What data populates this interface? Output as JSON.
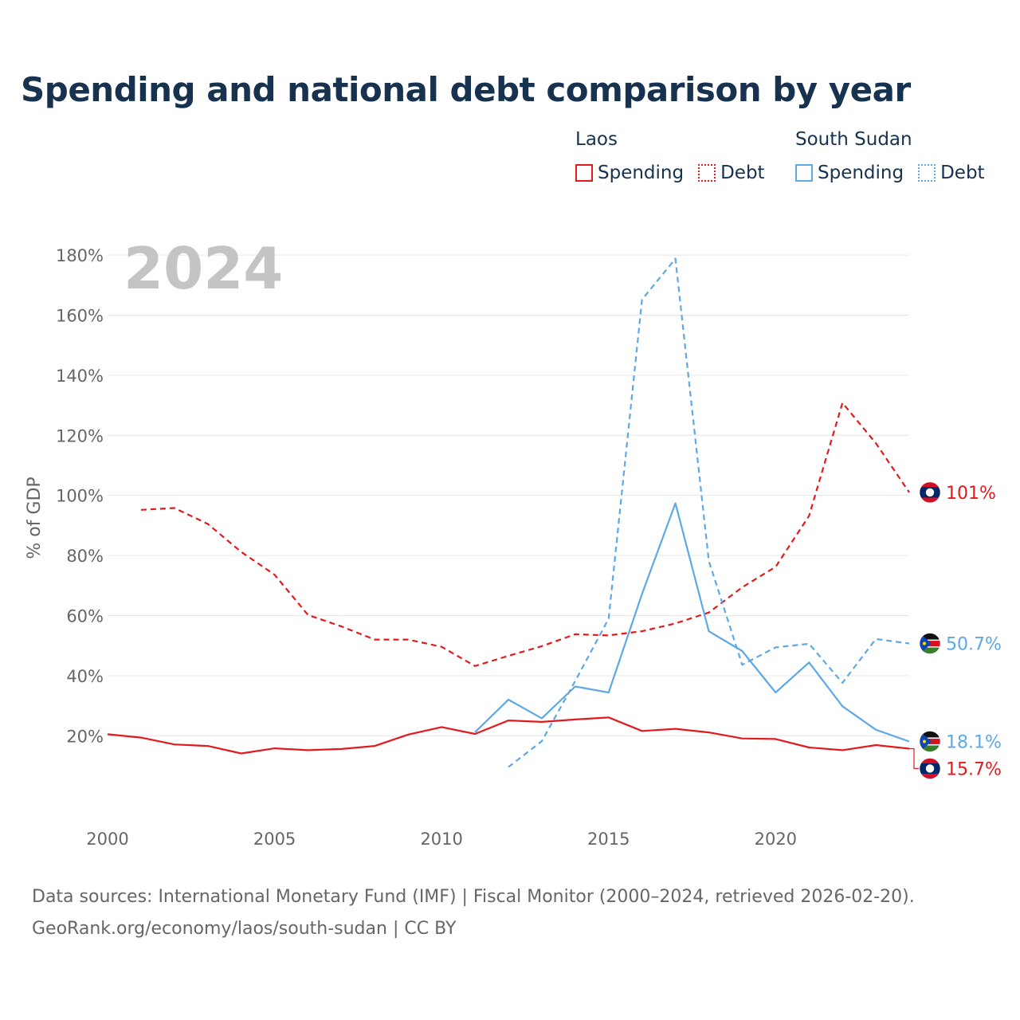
{
  "title": "Spending and national debt comparison by year",
  "legend": {
    "laos": {
      "country": "Laos",
      "spending": "Spending",
      "debt": "Debt"
    },
    "south_sudan": {
      "country": "South Sudan",
      "spending": "Spending",
      "debt": "Debt"
    }
  },
  "year_watermark": "2024",
  "footer": {
    "sources": "Data sources: International Monetary Fund (IMF) | Fiscal Monitor (2000–2024, retrieved 2026-02-20).",
    "credit": "GeoRank.org/economy/laos/south-sudan | CC BY"
  },
  "colors": {
    "laos": "#e31a1c",
    "south_sudan": "#5fa8e6",
    "title": "#17324f",
    "grid": "#e6e6e6"
  },
  "flags": {
    "laos": "laos-flag-icon",
    "south_sudan": "south-sudan-flag-icon"
  },
  "chart_data": {
    "type": "line",
    "title": "Spending and national debt comparison by year",
    "ylabel": "% of GDP",
    "xlabel": "",
    "xlim": [
      2000,
      2024
    ],
    "ylim": [
      -3,
      184
    ],
    "x_ticks": [
      "2000",
      "2005",
      "2010",
      "2015",
      "2020"
    ],
    "x_tick_values": [
      2000,
      2005,
      2010,
      2015,
      2020
    ],
    "y_ticks": [
      "20%",
      "40%",
      "60%",
      "80%",
      "100%",
      "120%",
      "140%",
      "160%",
      "180%"
    ],
    "y_tick_values": [
      20,
      40,
      60,
      80,
      100,
      120,
      140,
      160,
      180
    ],
    "series": [
      {
        "name": "Laos Spending",
        "country": "laos",
        "style": "solid",
        "points": [
          [
            2000,
            20.5
          ],
          [
            2001,
            19.4
          ],
          [
            2002,
            17.1
          ],
          [
            2003,
            16.6
          ],
          [
            2004,
            14.1
          ],
          [
            2005,
            15.8
          ],
          [
            2006,
            15.2
          ],
          [
            2007,
            15.6
          ],
          [
            2008,
            16.6
          ],
          [
            2009,
            20.4
          ],
          [
            2010,
            22.9
          ],
          [
            2011,
            20.6
          ],
          [
            2012,
            25.1
          ],
          [
            2013,
            24.6
          ],
          [
            2014,
            25.4
          ],
          [
            2015,
            26.1
          ],
          [
            2016,
            21.6
          ],
          [
            2017,
            22.3
          ],
          [
            2018,
            21.1
          ],
          [
            2019,
            19.1
          ],
          [
            2020,
            18.9
          ],
          [
            2021,
            16.1
          ],
          [
            2022,
            15.2
          ],
          [
            2023,
            16.9
          ],
          [
            2024,
            15.7
          ]
        ],
        "end_label": "15.7%"
      },
      {
        "name": "Laos Debt",
        "country": "laos",
        "style": "dashed",
        "points": [
          [
            2001,
            95.2
          ],
          [
            2002,
            95.8
          ],
          [
            2003,
            90.5
          ],
          [
            2004,
            81.2
          ],
          [
            2005,
            73.6
          ],
          [
            2006,
            60.2
          ],
          [
            2007,
            56.4
          ],
          [
            2008,
            52.0
          ],
          [
            2009,
            52.0
          ],
          [
            2010,
            49.6
          ],
          [
            2011,
            43.2
          ],
          [
            2012,
            46.6
          ],
          [
            2013,
            49.8
          ],
          [
            2014,
            53.8
          ],
          [
            2015,
            53.4
          ],
          [
            2016,
            54.8
          ],
          [
            2017,
            57.4
          ],
          [
            2018,
            61.0
          ],
          [
            2019,
            69.4
          ],
          [
            2020,
            76.2
          ],
          [
            2021,
            93.2
          ],
          [
            2022,
            130.8
          ],
          [
            2023,
            117.4
          ],
          [
            2024,
            101.0
          ]
        ],
        "end_label": "101%"
      },
      {
        "name": "South Sudan Spending",
        "country": "south_sudan",
        "style": "solid",
        "points": [
          [
            2011,
            21.2
          ],
          [
            2012,
            32.0
          ],
          [
            2013,
            25.8
          ],
          [
            2014,
            36.4
          ],
          [
            2015,
            34.4
          ],
          [
            2016,
            67.2
          ],
          [
            2017,
            97.4
          ],
          [
            2018,
            54.8
          ],
          [
            2019,
            48.2
          ],
          [
            2020,
            34.4
          ],
          [
            2021,
            44.4
          ],
          [
            2022,
            29.8
          ],
          [
            2023,
            22.0
          ],
          [
            2024,
            18.1
          ]
        ],
        "end_label": "18.1%"
      },
      {
        "name": "South Sudan Debt",
        "country": "south_sudan",
        "style": "dashed",
        "points": [
          [
            2012,
            9.6
          ],
          [
            2013,
            18.2
          ],
          [
            2014,
            38.2
          ],
          [
            2015,
            59.0
          ],
          [
            2016,
            165.2
          ],
          [
            2017,
            178.8
          ],
          [
            2018,
            78.2
          ],
          [
            2019,
            43.6
          ],
          [
            2020,
            49.4
          ],
          [
            2021,
            50.6
          ],
          [
            2022,
            37.6
          ],
          [
            2023,
            52.2
          ],
          [
            2024,
            50.7
          ]
        ],
        "end_label": "50.7%"
      }
    ]
  }
}
